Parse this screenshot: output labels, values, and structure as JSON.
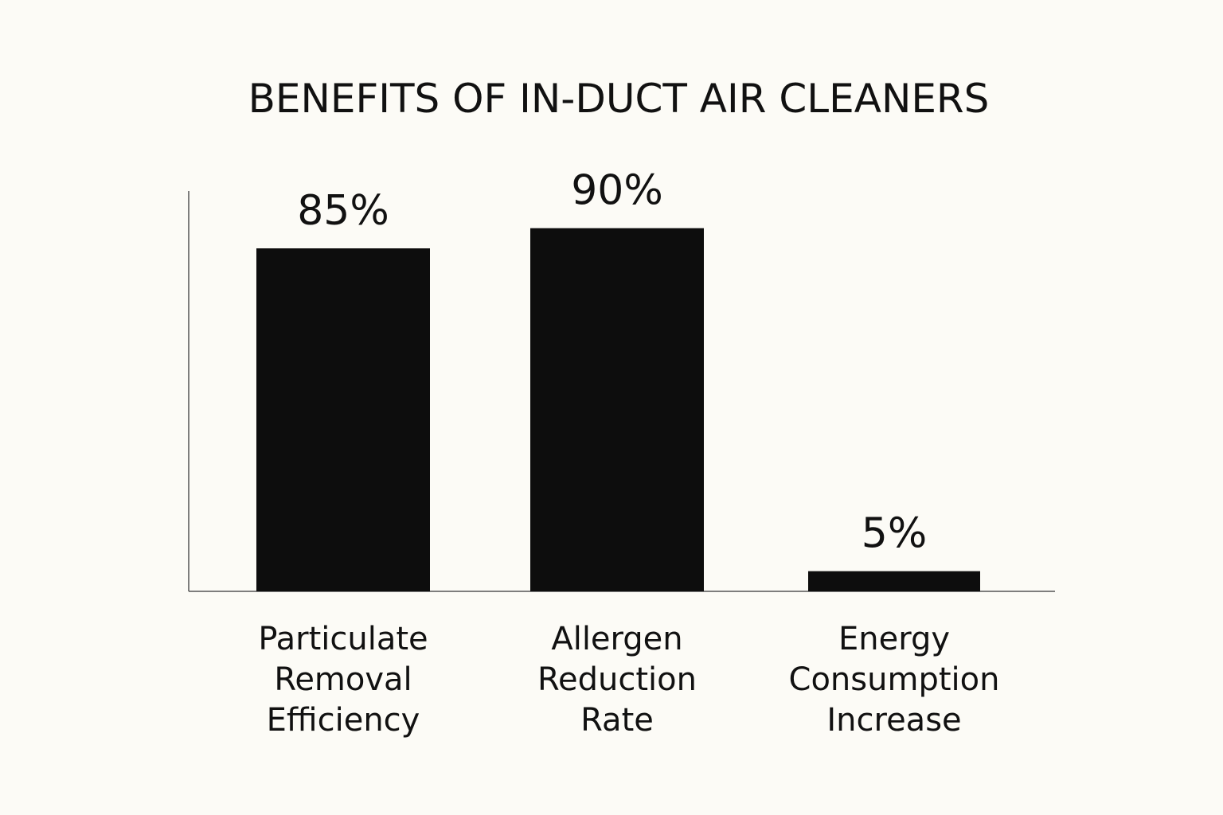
{
  "chart_data": {
    "type": "bar",
    "title": "BENEFITS OF IN-DUCT AIR CLEANERS",
    "categories": [
      [
        "Particulate",
        "Removal",
        "Efficiency"
      ],
      [
        "Allergen",
        "Reduction",
        "Rate"
      ],
      [
        "Energy",
        "Consumption",
        "Increase"
      ]
    ],
    "values": [
      85,
      90,
      5
    ],
    "value_labels": [
      "85%",
      "90%",
      "5%"
    ],
    "xlabel": "",
    "ylabel": "",
    "ylim": [
      0,
      100
    ],
    "grid": false,
    "legend": "none",
    "bar_color": "#0d0d0d",
    "background_color": "#fcfbf6"
  }
}
